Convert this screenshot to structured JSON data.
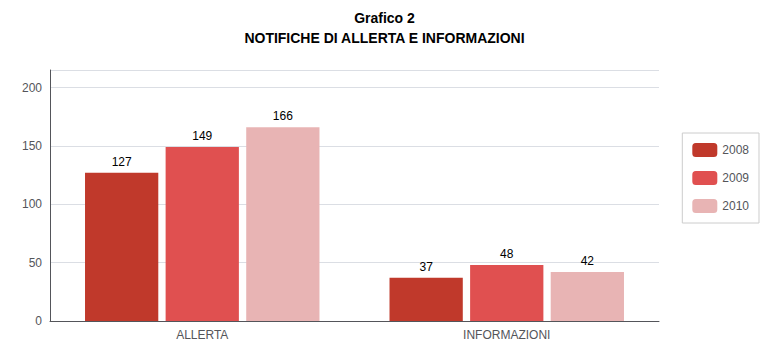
{
  "chart_data": {
    "type": "bar",
    "title": "Grafico 2",
    "subtitle": "NOTIFICHE DI ALLERTA E INFORMAZIONI",
    "categories": [
      "ALLERTA",
      "INFORMAZIONI"
    ],
    "series": [
      {
        "name": "2008",
        "color": "#C0392B",
        "values": [
          127,
          37
        ]
      },
      {
        "name": "2009",
        "color": "#E05050",
        "values": [
          149,
          48
        ]
      },
      {
        "name": "2010",
        "color": "#E8B4B4",
        "values": [
          166,
          42
        ]
      }
    ],
    "ylim": [
      0,
      215
    ],
    "yticks": [
      0,
      50,
      100,
      150,
      200
    ],
    "grid": true,
    "legend": "right",
    "data_labels": true
  }
}
